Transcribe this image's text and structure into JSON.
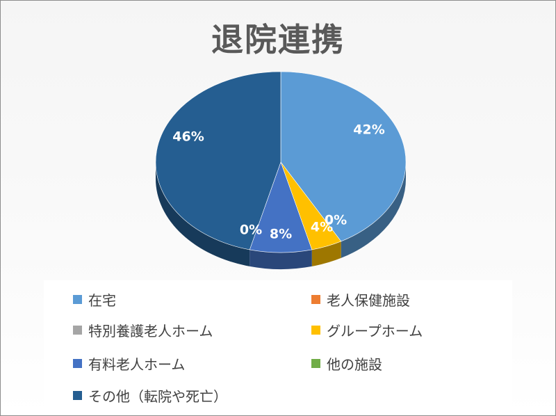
{
  "chart_data": {
    "type": "pie",
    "title": "退院連携",
    "categories": [
      "在宅",
      "老人保健施設",
      "特別養護老人ホーム",
      "グループホーム",
      "有料老人ホーム",
      "他の施設",
      "その他（転院や死亡）"
    ],
    "values": [
      42,
      0,
      0,
      4,
      8,
      0,
      46
    ],
    "data_labels": [
      "42%",
      "",
      "",
      "4%",
      "8%",
      "0%",
      "46%"
    ],
    "extra_label": "0%",
    "colors": [
      "#5b9bd5",
      "#ed7d31",
      "#a5a5a5",
      "#ffc000",
      "#4472c4",
      "#70ad47",
      "#255e91"
    ],
    "legend_position": "bottom",
    "style": "3d-pie"
  }
}
